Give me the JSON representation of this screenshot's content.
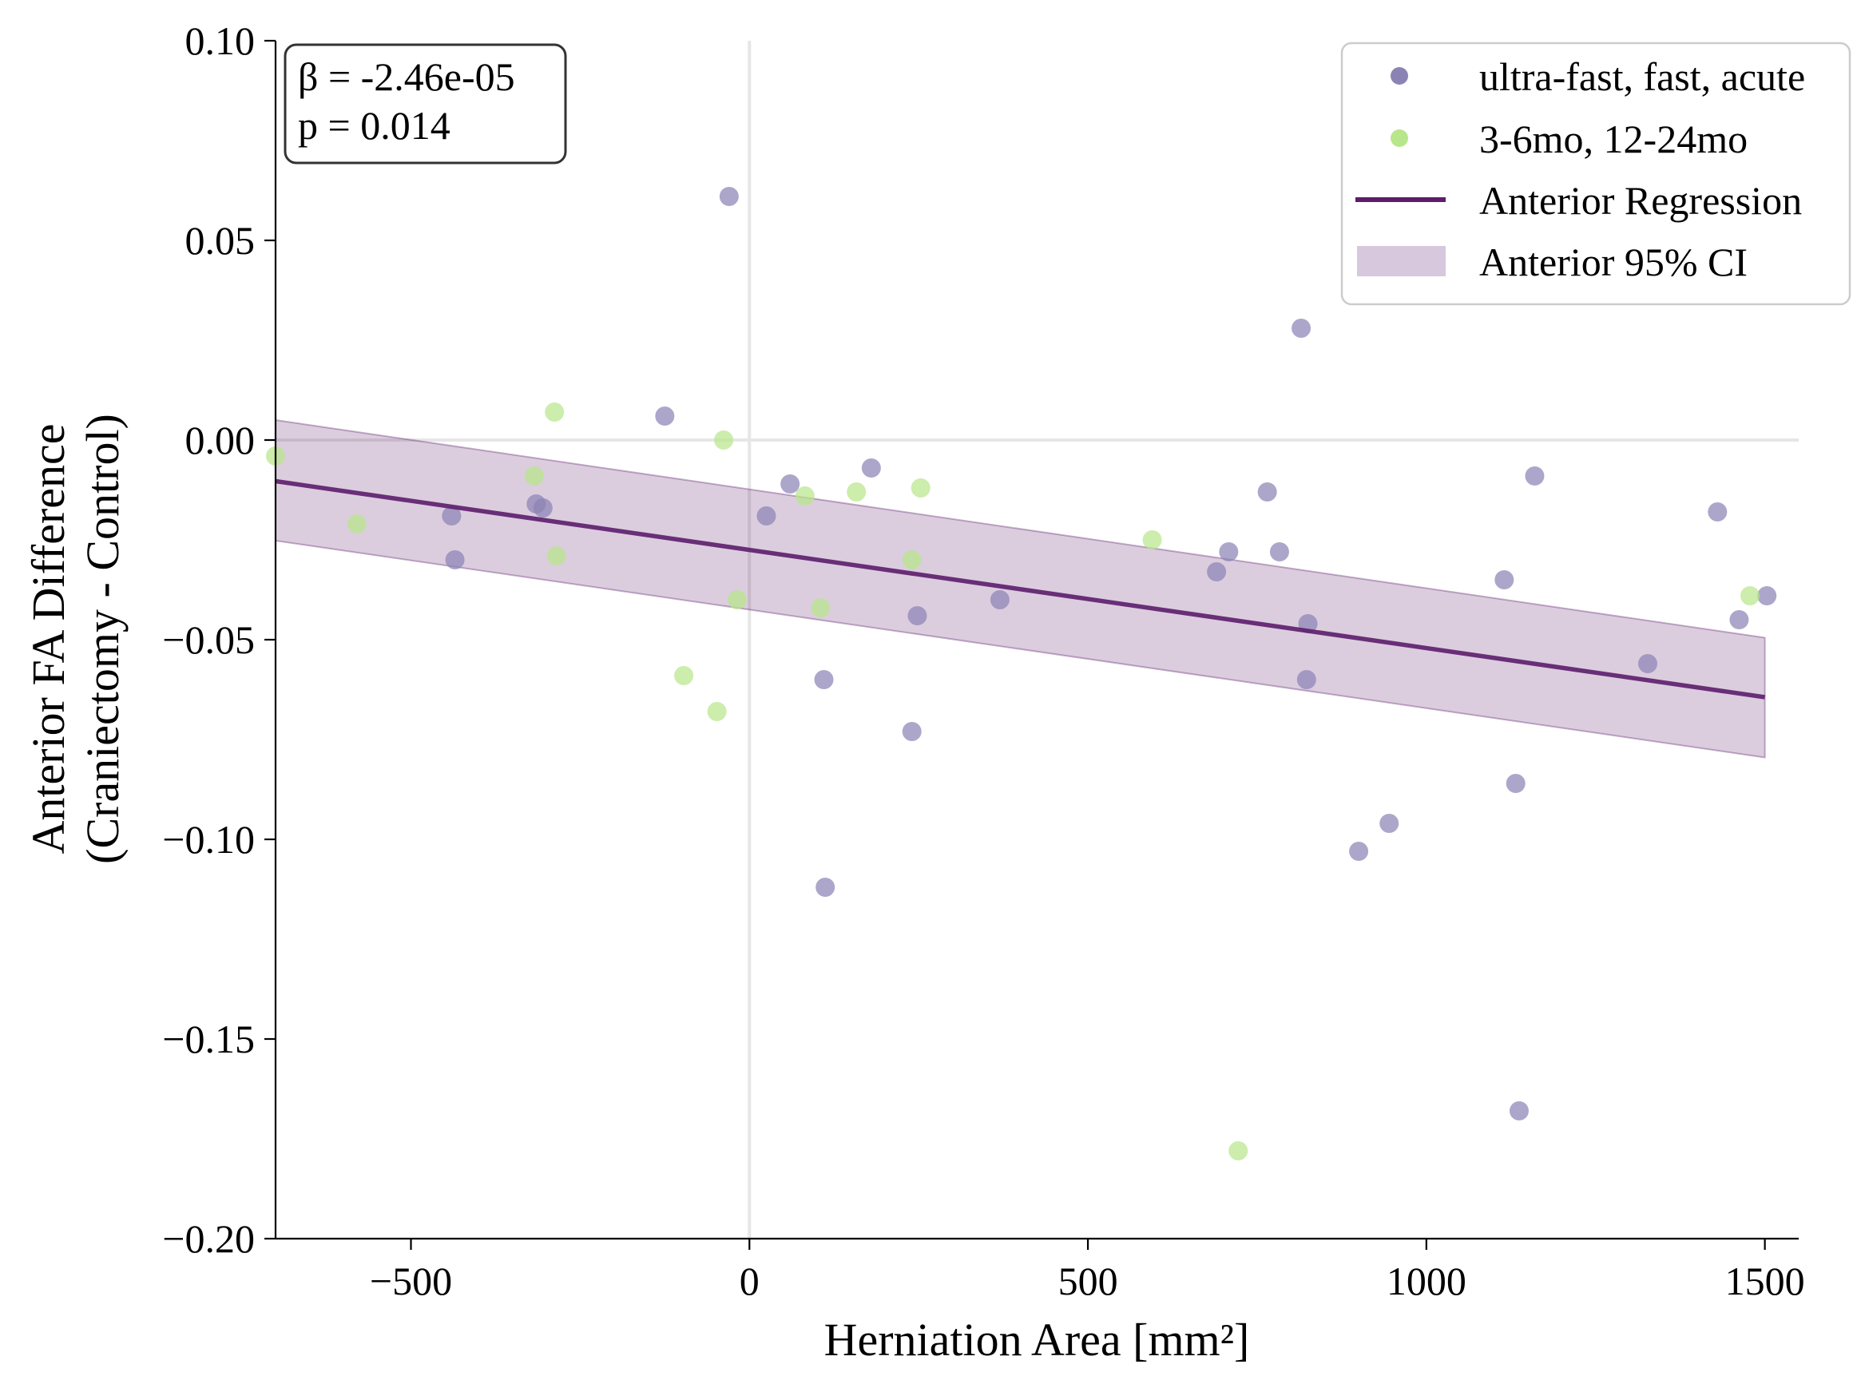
{
  "chart_data": {
    "type": "scatter",
    "xlabel": "Herniation Area [mm²]",
    "ylabel_lines": [
      "Anterior FA Difference",
      "(Craniectomy - Control)"
    ],
    "xlim": [
      -700,
      1550
    ],
    "ylim": [
      -0.2,
      0.1
    ],
    "xticks": [
      -500,
      0,
      500,
      1000,
      1500
    ],
    "xtick_labels": [
      "−500",
      "0",
      "500",
      "1000",
      "1500"
    ],
    "yticks": [
      0.1,
      0.05,
      0.0,
      -0.05,
      -0.1,
      -0.15,
      -0.2
    ],
    "ytick_labels": [
      "0.10",
      "0.05",
      "0.00",
      "−0.05",
      "−0.10",
      "−0.15",
      "−0.20"
    ],
    "reference_lines": {
      "x": 0,
      "y": 0
    },
    "annotation_lines": [
      "β = -2.46e-05",
      "p = 0.014"
    ],
    "legend_position": "upper-right",
    "legend": [
      {
        "label": "ultra-fast, fast, acute",
        "kind": "marker",
        "color": "#8c83b5"
      },
      {
        "label": "3-6mo, 12-24mo",
        "kind": "marker",
        "color": "#b8e68a"
      },
      {
        "label": "Anterior Regression",
        "kind": "line",
        "color": "#5c1d6b"
      },
      {
        "label": "Anterior 95% CI",
        "kind": "patch",
        "color": "#d8c8de"
      }
    ],
    "series": [
      {
        "name": "ultra-fast, fast, acute",
        "color": "#8c83b5",
        "points": [
          [
            -30,
            0.061
          ],
          [
            -125,
            0.006
          ],
          [
            -440,
            -0.019
          ],
          [
            -315,
            -0.016
          ],
          [
            -305,
            -0.017
          ],
          [
            -435,
            -0.03
          ],
          [
            25,
            -0.019
          ],
          [
            60,
            -0.011
          ],
          [
            180,
            -0.007
          ],
          [
            110,
            -0.06
          ],
          [
            112,
            -0.112
          ],
          [
            240,
            -0.073
          ],
          [
            248,
            -0.044
          ],
          [
            370,
            -0.04
          ],
          [
            690,
            -0.033
          ],
          [
            708,
            -0.028
          ],
          [
            765,
            -0.013
          ],
          [
            783,
            -0.028
          ],
          [
            815,
            0.028
          ],
          [
            825,
            -0.046
          ],
          [
            823,
            -0.06
          ],
          [
            900,
            -0.103
          ],
          [
            945,
            -0.096
          ],
          [
            1115,
            -0.035
          ],
          [
            1132,
            -0.086
          ],
          [
            1137,
            -0.168
          ],
          [
            1160,
            -0.009
          ],
          [
            1327,
            -0.056
          ],
          [
            1430,
            -0.018
          ],
          [
            1462,
            -0.045
          ],
          [
            1503,
            -0.039
          ]
        ]
      },
      {
        "name": "3-6mo, 12-24mo",
        "color": "#b8e68a",
        "points": [
          [
            -700,
            -0.004
          ],
          [
            -580,
            -0.021
          ],
          [
            -288,
            0.007
          ],
          [
            -285,
            -0.029
          ],
          [
            -318,
            -0.009
          ],
          [
            -38,
            0.0
          ],
          [
            -18,
            -0.04
          ],
          [
            -48,
            -0.068
          ],
          [
            -97,
            -0.059
          ],
          [
            82,
            -0.014
          ],
          [
            105,
            -0.042
          ],
          [
            158,
            -0.013
          ],
          [
            240,
            -0.03
          ],
          [
            253,
            -0.012
          ],
          [
            595,
            -0.025
          ],
          [
            722,
            -0.178
          ],
          [
            1478,
            -0.039
          ]
        ]
      }
    ],
    "regression": {
      "label": "Anterior Regression",
      "color": "#5c1d6b",
      "x": [
        -700,
        1500
      ],
      "y": [
        -0.0103,
        -0.0644
      ]
    },
    "confidence_band": {
      "label": "Anterior 95% CI",
      "color": "#5c1d6b",
      "x": [
        -700,
        1500
      ],
      "upper": [
        0.005,
        -0.0495
      ],
      "lower": [
        -0.0252,
        -0.0795
      ]
    }
  }
}
